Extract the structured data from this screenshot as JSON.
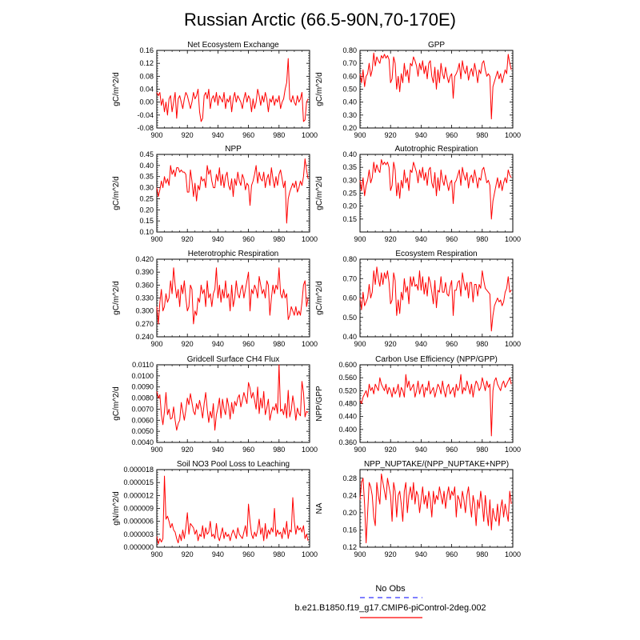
{
  "figure_title": "Russian Arctic (66.5-90N,70-170E)",
  "legend": {
    "obs_label": "No Obs",
    "run_label": "b.e21.B1850.f19_g17.CMIP6-piControl-2deg.002",
    "obs_color": "#3333ff",
    "run_color": "#ff0000"
  },
  "line_color": "#ff0000",
  "chart_data": [
    {
      "type": "line",
      "title": "Net Ecosystem Exchange",
      "ylabel": "gC/m^2/d",
      "xlabel": "",
      "xlim": [
        900,
        1000
      ],
      "xticks": [
        900,
        920,
        940,
        960,
        980,
        1000
      ],
      "ylim": [
        -0.08,
        0.16
      ],
      "yticks": [
        "-0.08",
        "-0.04",
        "0.00",
        "0.04",
        "0.08",
        "0.12",
        "0.16"
      ],
      "x_start": 900,
      "values": [
        0.03,
        0.02,
        0.03,
        -0.01,
        0.01,
        -0.03,
        0.0,
        -0.04,
        0.01,
        0.02,
        -0.03,
        0.0,
        0.03,
        -0.05,
        0.01,
        0.02,
        0.0,
        -0.02,
        0.01,
        0.03,
        0.02,
        0.0,
        -0.02,
        0.0,
        0.03,
        0.01,
        0.02,
        0.04,
        -0.03,
        -0.06,
        -0.05,
        0.02,
        0.03,
        0.01,
        0.04,
        -0.02,
        0.01,
        0.02,
        0.0,
        0.03,
        -0.01,
        0.02,
        0.01,
        0.0,
        0.03,
        -0.02,
        0.01,
        0.0,
        0.02,
        -0.03,
        0.01,
        0.03,
        0.0,
        0.02,
        0.01,
        0.0,
        -0.02,
        0.01,
        0.03,
        0.0,
        0.02,
        0.01,
        -0.03,
        0.01,
        -0.02,
        0.0,
        0.04,
        0.02,
        -0.01,
        0.02,
        0.0,
        0.03,
        0.01,
        -0.03,
        0.01,
        0.0,
        0.02,
        -0.01,
        0.01,
        0.0,
        0.02,
        -0.02,
        0.0,
        0.01,
        0.04,
        0.06,
        0.135,
        0.01,
        0.0,
        0.02,
        0.0,
        -0.01,
        0.02,
        0.0,
        0.01,
        0.03,
        -0.06,
        -0.055,
        0.0,
        0.01
      ]
    },
    {
      "type": "line",
      "title": "GPP",
      "ylabel": "gC/m^2/d",
      "xlabel": "",
      "xlim": [
        900,
        1000
      ],
      "xticks": [
        900,
        920,
        940,
        960,
        980,
        1000
      ],
      "ylim": [
        0.2,
        0.8
      ],
      "yticks": [
        "0.20",
        "0.30",
        "0.40",
        "0.50",
        "0.60",
        "0.70",
        "0.80"
      ],
      "x_start": 900,
      "values": [
        0.62,
        0.55,
        0.65,
        0.52,
        0.6,
        0.62,
        0.7,
        0.6,
        0.65,
        0.78,
        0.68,
        0.75,
        0.72,
        0.7,
        0.76,
        0.74,
        0.77,
        0.74,
        0.76,
        0.73,
        0.55,
        0.58,
        0.75,
        0.7,
        0.5,
        0.6,
        0.48,
        0.62,
        0.55,
        0.7,
        0.6,
        0.65,
        0.55,
        0.7,
        0.68,
        0.75,
        0.72,
        0.68,
        0.6,
        0.7,
        0.65,
        0.72,
        0.62,
        0.68,
        0.58,
        0.7,
        0.72,
        0.6,
        0.55,
        0.67,
        0.5,
        0.65,
        0.55,
        0.7,
        0.62,
        0.58,
        0.67,
        0.6,
        0.55,
        0.6,
        0.62,
        0.43,
        0.6,
        0.62,
        0.65,
        0.7,
        0.58,
        0.72,
        0.65,
        0.62,
        0.68,
        0.57,
        0.63,
        0.66,
        0.6,
        0.7,
        0.64,
        0.55,
        0.65,
        0.62,
        0.7,
        0.72,
        0.65,
        0.6,
        0.62,
        0.6,
        0.27,
        0.52,
        0.56,
        0.6,
        0.64,
        0.58,
        0.62,
        0.55,
        0.6,
        0.65,
        0.62,
        0.77,
        0.7,
        0.65
      ]
    },
    {
      "type": "line",
      "title": "NPP",
      "ylabel": "gC/m^2/d",
      "xlabel": "",
      "xlim": [
        900,
        1000
      ],
      "xticks": [
        900,
        920,
        940,
        960,
        980,
        1000
      ],
      "ylim": [
        0.1,
        0.45
      ],
      "yticks": [
        "0.10",
        "0.15",
        "0.20",
        "0.25",
        "0.30",
        "0.35",
        "0.40",
        "0.45"
      ],
      "x_start": 900,
      "values": [
        0.3,
        0.26,
        0.29,
        0.33,
        0.3,
        0.35,
        0.32,
        0.34,
        0.31,
        0.4,
        0.36,
        0.38,
        0.35,
        0.39,
        0.39,
        0.37,
        0.38,
        0.37,
        0.37,
        0.36,
        0.28,
        0.28,
        0.38,
        0.33,
        0.26,
        0.32,
        0.24,
        0.31,
        0.29,
        0.35,
        0.33,
        0.34,
        0.3,
        0.4,
        0.36,
        0.38,
        0.33,
        0.3,
        0.3,
        0.36,
        0.33,
        0.39,
        0.31,
        0.36,
        0.3,
        0.35,
        0.37,
        0.31,
        0.29,
        0.34,
        0.26,
        0.34,
        0.31,
        0.37,
        0.33,
        0.31,
        0.36,
        0.34,
        0.29,
        0.32,
        0.31,
        0.22,
        0.31,
        0.33,
        0.36,
        0.4,
        0.32,
        0.37,
        0.34,
        0.33,
        0.37,
        0.3,
        0.34,
        0.36,
        0.31,
        0.39,
        0.34,
        0.3,
        0.35,
        0.31,
        0.36,
        0.38,
        0.34,
        0.3,
        0.33,
        0.14,
        0.25,
        0.28,
        0.3,
        0.32,
        0.3,
        0.33,
        0.28,
        0.3,
        0.33,
        0.31,
        0.35,
        0.43,
        0.38,
        0.34
      ]
    },
    {
      "type": "line",
      "title": "Autotrophic Respiration",
      "ylabel": "gC/m^2/d",
      "xlabel": "",
      "xlim": [
        900,
        1000
      ],
      "xticks": [
        900,
        920,
        940,
        960,
        980,
        1000
      ],
      "ylim": [
        0.1,
        0.4
      ],
      "yticks": [
        "0.15",
        "0.20",
        "0.25",
        "0.30",
        "0.35",
        "0.40"
      ],
      "x_start": 900,
      "values": [
        0.3,
        0.26,
        0.31,
        0.24,
        0.28,
        0.3,
        0.34,
        0.29,
        0.31,
        0.37,
        0.33,
        0.36,
        0.34,
        0.33,
        0.38,
        0.36,
        0.37,
        0.36,
        0.37,
        0.35,
        0.26,
        0.28,
        0.37,
        0.34,
        0.24,
        0.29,
        0.23,
        0.3,
        0.27,
        0.34,
        0.29,
        0.31,
        0.26,
        0.34,
        0.33,
        0.37,
        0.35,
        0.33,
        0.29,
        0.34,
        0.31,
        0.35,
        0.3,
        0.33,
        0.28,
        0.34,
        0.35,
        0.29,
        0.27,
        0.33,
        0.24,
        0.31,
        0.26,
        0.34,
        0.3,
        0.28,
        0.32,
        0.29,
        0.26,
        0.29,
        0.3,
        0.21,
        0.29,
        0.3,
        0.32,
        0.34,
        0.28,
        0.35,
        0.32,
        0.3,
        0.33,
        0.27,
        0.31,
        0.32,
        0.29,
        0.34,
        0.31,
        0.27,
        0.31,
        0.3,
        0.34,
        0.35,
        0.32,
        0.29,
        0.3,
        0.28,
        0.15,
        0.22,
        0.25,
        0.28,
        0.31,
        0.27,
        0.3,
        0.26,
        0.29,
        0.31,
        0.29,
        0.34,
        0.32,
        0.31
      ]
    },
    {
      "type": "line",
      "title": "Heterotrophic Respiration",
      "ylabel": "gC/m^2/d",
      "xlabel": "",
      "xlim": [
        900,
        1000
      ],
      "xticks": [
        900,
        920,
        940,
        960,
        980,
        1000
      ],
      "ylim": [
        0.24,
        0.42
      ],
      "yticks": [
        "0.240",
        "0.270",
        "0.300",
        "0.330",
        "0.360",
        "0.390",
        "0.420"
      ],
      "x_start": 900,
      "values": [
        0.31,
        0.27,
        0.32,
        0.35,
        0.3,
        0.31,
        0.34,
        0.32,
        0.33,
        0.37,
        0.34,
        0.4,
        0.36,
        0.33,
        0.35,
        0.31,
        0.36,
        0.34,
        0.37,
        0.33,
        0.3,
        0.31,
        0.36,
        0.35,
        0.27,
        0.3,
        0.29,
        0.33,
        0.32,
        0.36,
        0.34,
        0.35,
        0.31,
        0.37,
        0.33,
        0.34,
        0.31,
        0.34,
        0.35,
        0.4,
        0.33,
        0.36,
        0.32,
        0.35,
        0.33,
        0.37,
        0.33,
        0.34,
        0.3,
        0.36,
        0.31,
        0.33,
        0.37,
        0.34,
        0.33,
        0.35,
        0.36,
        0.33,
        0.35,
        0.37,
        0.39,
        0.3,
        0.35,
        0.34,
        0.36,
        0.35,
        0.33,
        0.38,
        0.36,
        0.34,
        0.35,
        0.33,
        0.37,
        0.36,
        0.29,
        0.33,
        0.36,
        0.34,
        0.36,
        0.35,
        0.4,
        0.34,
        0.33,
        0.35,
        0.33,
        0.34,
        0.28,
        0.29,
        0.31,
        0.3,
        0.29,
        0.31,
        0.29,
        0.3,
        0.29,
        0.32,
        0.36,
        0.37,
        0.31,
        0.33
      ]
    },
    {
      "type": "line",
      "title": "Ecosystem Respiration",
      "ylabel": "gC/m^2/d",
      "xlabel": "",
      "xlim": [
        900,
        1000
      ],
      "xticks": [
        900,
        920,
        940,
        960,
        980,
        1000
      ],
      "ylim": [
        0.4,
        0.8
      ],
      "yticks": [
        "0.40",
        "0.50",
        "0.60",
        "0.70",
        "0.80"
      ],
      "x_start": 900,
      "values": [
        0.6,
        0.54,
        0.63,
        0.56,
        0.58,
        0.6,
        0.67,
        0.6,
        0.63,
        0.74,
        0.67,
        0.76,
        0.7,
        0.66,
        0.73,
        0.67,
        0.73,
        0.7,
        0.74,
        0.68,
        0.57,
        0.59,
        0.73,
        0.69,
        0.51,
        0.59,
        0.52,
        0.63,
        0.59,
        0.7,
        0.63,
        0.66,
        0.57,
        0.71,
        0.66,
        0.71,
        0.66,
        0.67,
        0.64,
        0.74,
        0.64,
        0.71,
        0.62,
        0.68,
        0.61,
        0.71,
        0.68,
        0.63,
        0.57,
        0.69,
        0.55,
        0.64,
        0.63,
        0.71,
        0.63,
        0.63,
        0.68,
        0.62,
        0.61,
        0.66,
        0.69,
        0.51,
        0.64,
        0.64,
        0.68,
        0.69,
        0.61,
        0.73,
        0.68,
        0.64,
        0.68,
        0.6,
        0.68,
        0.68,
        0.58,
        0.67,
        0.67,
        0.61,
        0.67,
        0.65,
        0.74,
        0.69,
        0.65,
        0.64,
        0.63,
        0.62,
        0.43,
        0.51,
        0.56,
        0.58,
        0.6,
        0.58,
        0.59,
        0.56,
        0.58,
        0.63,
        0.65,
        0.71,
        0.63,
        0.64
      ]
    },
    {
      "type": "line",
      "title": "Gridcell Surface CH4 Flux",
      "ylabel": "gC/m^2/d",
      "xlabel": "",
      "xlim": [
        900,
        1000
      ],
      "xticks": [
        900,
        920,
        940,
        960,
        980,
        1000
      ],
      "ylim": [
        0.004,
        0.011
      ],
      "yticks": [
        "0.0040",
        "0.0050",
        "0.0060",
        "0.0070",
        "0.0080",
        "0.0090",
        "0.0100",
        "0.0110"
      ],
      "x_start": 900,
      "values": [
        0.0086,
        0.008,
        0.0083,
        0.0065,
        0.0056,
        0.0068,
        0.0085,
        0.0065,
        0.007,
        0.0061,
        0.0062,
        0.0072,
        0.006,
        0.0051,
        0.0057,
        0.006,
        0.0076,
        0.0068,
        0.006,
        0.0069,
        0.008,
        0.0074,
        0.0084,
        0.0076,
        0.0068,
        0.0065,
        0.0075,
        0.007,
        0.0078,
        0.0071,
        0.0062,
        0.0075,
        0.0085,
        0.007,
        0.0058,
        0.0068,
        0.0062,
        0.0075,
        0.0051,
        0.0065,
        0.0071,
        0.008,
        0.0062,
        0.0079,
        0.007,
        0.0065,
        0.008,
        0.0073,
        0.0061,
        0.0076,
        0.0066,
        0.0077,
        0.0073,
        0.008,
        0.0083,
        0.0072,
        0.0078,
        0.0085,
        0.008,
        0.0075,
        0.0094,
        0.0089,
        0.008,
        0.0085,
        0.0078,
        0.007,
        0.009,
        0.0066,
        0.008,
        0.0071,
        0.0086,
        0.0065,
        0.0071,
        0.0079,
        0.006,
        0.0067,
        0.0072,
        0.0069,
        0.0075,
        0.0066,
        0.011,
        0.0068,
        0.007,
        0.0065,
        0.0075,
        0.0062,
        0.0087,
        0.0063,
        0.0069,
        0.0082,
        0.0073,
        0.006,
        0.0071,
        0.0066,
        0.0064,
        0.0095,
        0.0085,
        0.0063,
        0.0068,
        0.0067
      ]
    },
    {
      "type": "line",
      "title": "Carbon Use Efficiency (NPP/GPP)",
      "ylabel": "NPP/GPP",
      "xlabel": "",
      "xlim": [
        900,
        1000
      ],
      "xticks": [
        900,
        920,
        940,
        960,
        980,
        1000
      ],
      "ylim": [
        0.36,
        0.6
      ],
      "yticks": [
        "0.360",
        "0.400",
        "0.440",
        "0.480",
        "0.520",
        "0.560",
        "0.600"
      ],
      "x_start": 900,
      "values": [
        0.49,
        0.48,
        0.5,
        0.51,
        0.52,
        0.5,
        0.54,
        0.52,
        0.53,
        0.51,
        0.54,
        0.53,
        0.52,
        0.56,
        0.54,
        0.53,
        0.52,
        0.54,
        0.51,
        0.53,
        0.52,
        0.5,
        0.53,
        0.51,
        0.52,
        0.54,
        0.5,
        0.53,
        0.52,
        0.5,
        0.57,
        0.53,
        0.55,
        0.52,
        0.53,
        0.54,
        0.5,
        0.52,
        0.55,
        0.51,
        0.53,
        0.54,
        0.5,
        0.53,
        0.52,
        0.55,
        0.51,
        0.52,
        0.53,
        0.5,
        0.52,
        0.54,
        0.53,
        0.51,
        0.55,
        0.52,
        0.5,
        0.53,
        0.54,
        0.51,
        0.52,
        0.53,
        0.5,
        0.54,
        0.52,
        0.53,
        0.57,
        0.51,
        0.53,
        0.52,
        0.55,
        0.53,
        0.51,
        0.54,
        0.5,
        0.53,
        0.55,
        0.54,
        0.52,
        0.53,
        0.56,
        0.54,
        0.52,
        0.55,
        0.53,
        0.54,
        0.38,
        0.52,
        0.55,
        0.56,
        0.54,
        0.53,
        0.52,
        0.54,
        0.55,
        0.53,
        0.54,
        0.55,
        0.56,
        0.54
      ]
    },
    {
      "type": "line",
      "title": "Soil NO3 Pool Loss to Leaching",
      "ylabel": "gN/m^2/d",
      "xlabel": "",
      "xlim": [
        900,
        1000
      ],
      "xticks": [
        900,
        920,
        940,
        960,
        980,
        1000
      ],
      "ylim": [
        0.0,
        1.8e-05
      ],
      "yticks": [
        "0.000000",
        "0.000003",
        "0.000006",
        "0.000009",
        "0.000012",
        "0.000015",
        "0.000018"
      ],
      "x_start": 900,
      "values": [
        2.5e-06,
        8e-07,
        2e-06,
        1.2e-06,
        2e-06,
        1.65e-05,
        6.5e-06,
        7.2e-06,
        6e-06,
        4.5e-06,
        5.5e-06,
        4e-06,
        3.5e-06,
        2e-06,
        1e-06,
        3e-06,
        1.5e-06,
        4e-06,
        2e-06,
        4.5e-06,
        8e-06,
        3e-06,
        5.5e-06,
        5e-06,
        4.5e-06,
        3e-06,
        4e-06,
        1.5e-06,
        3e-06,
        2.5e-06,
        5e-06,
        2e-06,
        4.5e-06,
        3e-06,
        3.5e-06,
        6e-06,
        2.5e-06,
        3e-06,
        2e-06,
        5.5e-06,
        2.5e-06,
        1.5e-06,
        3e-06,
        4.5e-06,
        2e-06,
        3.5e-06,
        2.5e-06,
        3e-06,
        1.5e-06,
        3e-06,
        4e-06,
        3e-06,
        2e-06,
        4.5e-06,
        3e-06,
        2.5e-06,
        2e-06,
        3.5e-06,
        5e-06,
        2.5e-06,
        1e-05,
        6e-06,
        3e-06,
        2e-06,
        3.5e-06,
        2.5e-06,
        4e-06,
        6.5e-06,
        3e-06,
        4.5e-06,
        1.5e-06,
        5.5e-06,
        2e-06,
        4e-06,
        3e-06,
        4.5e-06,
        3.5e-06,
        9e-06,
        2.5e-06,
        4e-06,
        3e-06,
        3.5e-06,
        2e-06,
        4.5e-06,
        3e-06,
        6e-06,
        2e-06,
        4e-06,
        3.5e-06,
        1.15e-05,
        6e-06,
        3e-06,
        5e-06,
        4e-06,
        4.5e-06,
        3.5e-06,
        5e-06,
        2e-06,
        3e-06,
        1.5e-06
      ]
    },
    {
      "type": "line",
      "title": "NPP_NUPTAKE/(NPP_NUPTAKE+NPP)",
      "ylabel": "NA",
      "xlabel": "",
      "xlim": [
        900,
        1000
      ],
      "xticks": [
        900,
        920,
        940,
        960,
        980,
        1000
      ],
      "ylim": [
        0.12,
        0.3
      ],
      "yticks": [
        "0.12",
        "0.16",
        "0.20",
        "0.24",
        "0.28"
      ],
      "x_start": 900,
      "values": [
        0.23,
        0.27,
        0.28,
        0.22,
        0.13,
        0.2,
        0.27,
        0.26,
        0.24,
        0.19,
        0.17,
        0.27,
        0.24,
        0.22,
        0.29,
        0.27,
        0.25,
        0.23,
        0.28,
        0.26,
        0.24,
        0.18,
        0.27,
        0.25,
        0.19,
        0.24,
        0.25,
        0.22,
        0.18,
        0.25,
        0.27,
        0.2,
        0.24,
        0.26,
        0.23,
        0.27,
        0.22,
        0.25,
        0.24,
        0.2,
        0.23,
        0.26,
        0.22,
        0.24,
        0.21,
        0.25,
        0.23,
        0.19,
        0.25,
        0.22,
        0.24,
        0.23,
        0.26,
        0.24,
        0.22,
        0.25,
        0.21,
        0.24,
        0.26,
        0.23,
        0.25,
        0.24,
        0.26,
        0.19,
        0.24,
        0.23,
        0.21,
        0.25,
        0.23,
        0.2,
        0.24,
        0.26,
        0.22,
        0.19,
        0.24,
        0.22,
        0.17,
        0.23,
        0.21,
        0.25,
        0.22,
        0.18,
        0.24,
        0.2,
        0.17,
        0.23,
        0.16,
        0.21,
        0.19,
        0.18,
        0.22,
        0.17,
        0.21,
        0.23,
        0.19,
        0.22,
        0.2,
        0.18,
        0.25,
        0.22
      ]
    }
  ]
}
